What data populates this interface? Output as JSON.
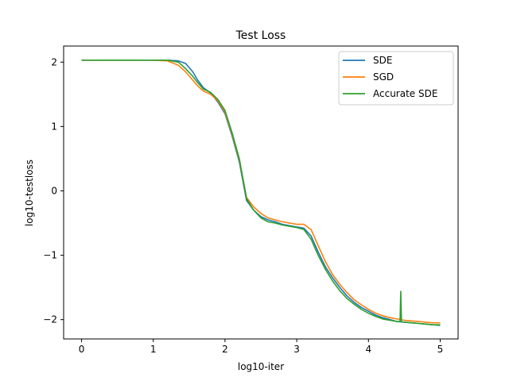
{
  "chart_data": {
    "type": "line",
    "title": "Test Loss",
    "xlabel": "log10-iter",
    "ylabel": "log10-testloss",
    "xlim": [
      -0.25,
      5.25
    ],
    "ylim": [
      -2.3,
      2.25
    ],
    "xticks": [
      0,
      1,
      2,
      3,
      4,
      5
    ],
    "xtick_labels": [
      "0",
      "1",
      "2",
      "3",
      "4",
      "5"
    ],
    "yticks": [
      -2,
      -1,
      0,
      1,
      2
    ],
    "ytick_labels": [
      "−2",
      "−1",
      "0",
      "1",
      "2"
    ],
    "grid": false,
    "legend_position": "top-right",
    "series": [
      {
        "name": "SDE",
        "color": "#1f77b4",
        "x": [
          0,
          0.5,
          1.0,
          1.2,
          1.35,
          1.45,
          1.55,
          1.62,
          1.7,
          1.8,
          1.9,
          2.0,
          2.1,
          2.2,
          2.3,
          2.4,
          2.5,
          2.6,
          2.7,
          2.8,
          2.9,
          3.0,
          3.1,
          3.2,
          3.3,
          3.4,
          3.5,
          3.6,
          3.7,
          3.8,
          3.9,
          4.0,
          4.1,
          4.2,
          4.3,
          4.4,
          4.5,
          4.6,
          4.7,
          4.8,
          4.9,
          5.0
        ],
        "y": [
          2.03,
          2.03,
          2.03,
          2.03,
          2.02,
          1.98,
          1.85,
          1.72,
          1.6,
          1.52,
          1.38,
          1.2,
          0.85,
          0.45,
          -0.15,
          -0.3,
          -0.4,
          -0.45,
          -0.48,
          -0.52,
          -0.54,
          -0.56,
          -0.58,
          -0.7,
          -0.95,
          -1.18,
          -1.35,
          -1.5,
          -1.63,
          -1.73,
          -1.81,
          -1.87,
          -1.93,
          -1.97,
          -2.0,
          -2.03,
          -2.04,
          -2.05,
          -2.06,
          -2.07,
          -2.08,
          -2.09
        ]
      },
      {
        "name": "SGD",
        "color": "#ff7f0e",
        "x": [
          0,
          0.5,
          1.0,
          1.2,
          1.35,
          1.45,
          1.55,
          1.62,
          1.7,
          1.8,
          1.9,
          2.0,
          2.1,
          2.2,
          2.3,
          2.4,
          2.5,
          2.6,
          2.7,
          2.8,
          2.9,
          3.0,
          3.1,
          3.2,
          3.3,
          3.4,
          3.5,
          3.6,
          3.7,
          3.8,
          3.9,
          4.0,
          4.1,
          4.2,
          4.3,
          4.4,
          4.5,
          4.6,
          4.7,
          4.8,
          4.9,
          5.0
        ],
        "y": [
          2.03,
          2.03,
          2.03,
          2.02,
          1.95,
          1.85,
          1.72,
          1.63,
          1.55,
          1.5,
          1.4,
          1.22,
          0.88,
          0.48,
          -0.1,
          -0.25,
          -0.35,
          -0.42,
          -0.45,
          -0.48,
          -0.5,
          -0.52,
          -0.52,
          -0.6,
          -0.85,
          -1.1,
          -1.3,
          -1.45,
          -1.58,
          -1.69,
          -1.77,
          -1.84,
          -1.9,
          -1.94,
          -1.97,
          -1.99,
          -2.01,
          -2.02,
          -2.03,
          -2.04,
          -2.05,
          -2.05
        ]
      },
      {
        "name": "Accurate SDE",
        "color": "#2ca02c",
        "x": [
          0,
          0.5,
          1.0,
          1.2,
          1.35,
          1.45,
          1.55,
          1.62,
          1.7,
          1.8,
          1.9,
          2.0,
          2.1,
          2.2,
          2.3,
          2.4,
          2.5,
          2.6,
          2.7,
          2.8,
          2.9,
          3.0,
          3.1,
          3.2,
          3.3,
          3.4,
          3.5,
          3.6,
          3.7,
          3.8,
          3.9,
          4.0,
          4.1,
          4.2,
          4.3,
          4.4,
          4.44,
          4.45,
          4.46,
          4.5,
          4.6,
          4.7,
          4.8,
          4.9,
          5.0
        ],
        "y": [
          2.03,
          2.03,
          2.03,
          2.03,
          2.0,
          1.9,
          1.78,
          1.68,
          1.58,
          1.53,
          1.42,
          1.25,
          0.9,
          0.5,
          -0.12,
          -0.3,
          -0.42,
          -0.48,
          -0.5,
          -0.53,
          -0.55,
          -0.57,
          -0.6,
          -0.75,
          -1.0,
          -1.22,
          -1.4,
          -1.55,
          -1.67,
          -1.76,
          -1.84,
          -1.9,
          -1.95,
          -1.99,
          -2.01,
          -2.03,
          -2.03,
          -1.56,
          -2.03,
          -2.04,
          -2.05,
          -2.06,
          -2.07,
          -2.08,
          -2.08
        ]
      }
    ]
  }
}
